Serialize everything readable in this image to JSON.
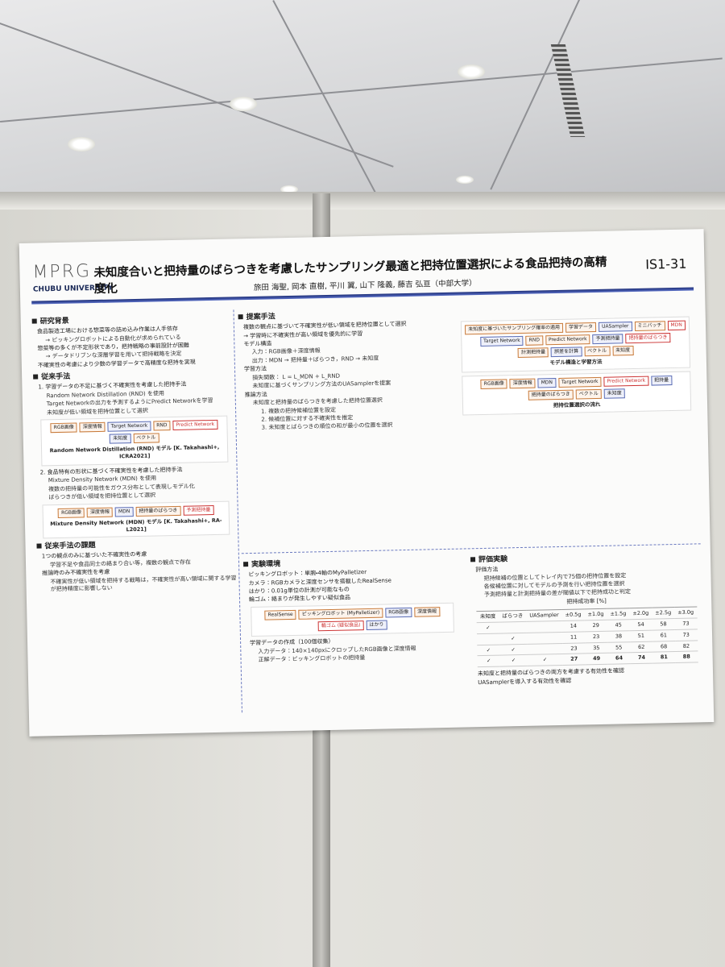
{
  "poster": {
    "logo": "MPRG",
    "university": "CHUBU UNIVERSITY",
    "title": "未知度合いと把持量のばらつきを考慮したサンプリング最適と把持位置選択による食品把持の高精度化",
    "id": "IS1-31",
    "authors": "旅田 海聖, 岡本 直樹, 平川 翼, 山下 隆義, 藤吉 弘亘（中部大学）",
    "left": [
      {
        "heading": "研究背景",
        "items": [
          {
            "text": "食品製造工場における惣菜等の詰め込み作業は人手依存",
            "items": [
              "→ ピッキングロボットによる自動化が求められている"
            ]
          },
          {
            "text": "惣菜等の多くが不定形状であり，把持戦略の事前設計が困難",
            "items": [
              "→ データドリブンな深層学習を用いて把持戦略を決定"
            ]
          },
          "不確実性の考慮により少数の学習データで高精度な把持を実現"
        ]
      },
      {
        "heading": "従来手法",
        "items": [
          {
            "text": "1. 学習データの不足に基づく不確実性を考慮した把持手法",
            "items": [
              "Random Network Distillation (RND) を使用",
              "Target Networkの出力を予測するようにPredict Networkを学習",
              "未知度が低い領域を把持位置として選択"
            ]
          },
          {
            "caption": "Random Network Distillation (RND) モデル [K. Takahashi+, ICRA2021]",
            "labels": [
              "RGB画像",
              "深度情報",
              "Target Network",
              "RND",
              "Predict Network",
              "未知度",
              "ベクトル"
            ]
          },
          {
            "text": "2. 食品特有の形状に基づく不確実性を考慮した把持手法",
            "items": [
              "Mixture Density Network (MDN) を使用",
              "複数の把持量の可能性をガウス分布として表現しモデル化",
              "ばらつきが低い領域を把持位置として選択"
            ]
          },
          {
            "caption": "Mixture Density Network (MDN) モデル [K. Takahashi+, RA-L2021]",
            "labels": [
              "RGB画像",
              "深度情報",
              "MDN",
              "把持量のばらつき",
              "予測把持量"
            ]
          }
        ]
      },
      {
        "heading": "従来手法の課題",
        "items": [
          {
            "text": "1つの観点のみに基づいた不確実性の考慮",
            "items": [
              "学習不足や食品同士の絡まり合い等，複数の観点で存在"
            ]
          },
          {
            "text": "推論時のみ不確実性を考慮",
            "items": [
              "不確実性が低い領域を把持する戦略は，不確実性が高い領域に関する学習が把持精度に影響しない"
            ]
          }
        ]
      }
    ],
    "proposed": {
      "heading": "提案手法",
      "items": [
        "複数の観点に基づいて不確実性が低い領域を把持位置として選択",
        "→ 学習時に不確実性が高い領域を優先的に学習",
        {
          "text": "モデル構造",
          "items": [
            "入力：RGB画像＋深度情報",
            "出力：MDN → 把持量＋ばらつき，RND → 未知度"
          ]
        },
        {
          "text": "学習方法",
          "items": [
            "損失関数： L = L_MDN + L_RND",
            "未知度に基づくサンプリング方法のUASamplerを提案"
          ]
        },
        {
          "text": "推論方法",
          "items": [
            {
              "text": "未知度と把持量のばらつきを考慮した把持位置選択",
              "items": [
                "1. 複数の把持候補位置を設定",
                "2. 候補位置に対する不確実性を推定",
                "3. 未知度とばらつきの順位の和が最小の位置を選択"
              ]
            }
          ]
        }
      ],
      "figures": [
        {
          "caption": "モデル構造と学習方法",
          "labels": [
            "未知度に基づいたサンプリング確率の適用",
            "学習データ",
            "UASampler",
            "ミニバッチ",
            "MDN",
            "Target Network",
            "RND",
            "Predict Network",
            "予測把持量",
            "把持量のばらつき",
            "計測把持量",
            "誤差を計算",
            "ベクトル",
            "未知度"
          ]
        },
        {
          "caption": "把持位置選択の流れ",
          "labels": [
            "RGB画像",
            "深度情報",
            "MDN",
            "Target Network",
            "Predict Network",
            "把持量",
            "把持量のばらつき",
            "ベクトル",
            "未知度"
          ]
        }
      ]
    },
    "environment": {
      "heading": "実験環境",
      "items": [
        "ピッキングロボット：単腕・4軸のMyPalletizer",
        "カメラ：RGBカメラと深度センサを搭載したRealSense",
        "はかり：0.01g単位の計測が可能なもの",
        "輪ゴム：絡まりが発生しやすい疑似食品",
        {
          "caption": null,
          "labels": [
            "RealSense",
            "ピッキングロボット (MyPalletizer)",
            "RGB画像",
            "深度情報",
            "輪ゴム (疑似食品)",
            "はかり"
          ]
        },
        {
          "text": "学習データの作成（100個収集）",
          "items": [
            "入力データ：140×140pxにクロップしたRGB画像と深度情報",
            "正解データ：ピッキングロボットの把持量"
          ]
        }
      ]
    },
    "evaluation": {
      "heading": "評価実験",
      "items": [
        {
          "text": "評価方法",
          "items": [
            "把持候補の位置としてトレイ内で75個の把持位置を設定",
            "各候補位置に対してモデルの予測を行い把持位置を選択",
            "予測把持量と計測把持量の差が閾値以下で把持成功と判定"
          ]
        }
      ],
      "table": {
        "caption": "把持成功率 [%]",
        "header": [
          "未知度",
          "ばらつき",
          "UASampler",
          "±0.5g",
          "±1.0g",
          "±1.5g",
          "±2.0g",
          "±2.5g",
          "±3.0g"
        ],
        "rows": [
          [
            "✓",
            null,
            null,
            14,
            29,
            45,
            54,
            58,
            73
          ],
          [
            null,
            "✓",
            null,
            11,
            23,
            38,
            51,
            61,
            73
          ],
          [
            "✓",
            "✓",
            null,
            23,
            35,
            55,
            62,
            68,
            82
          ],
          [
            "✓",
            "✓",
            "✓",
            27,
            49,
            64,
            74,
            81,
            88
          ]
        ]
      },
      "conclusions": [
        "未知度と把持量のばらつきの両方を考慮する有効性を確認",
        "UASamplerを導入する有効性を確認"
      ]
    }
  }
}
